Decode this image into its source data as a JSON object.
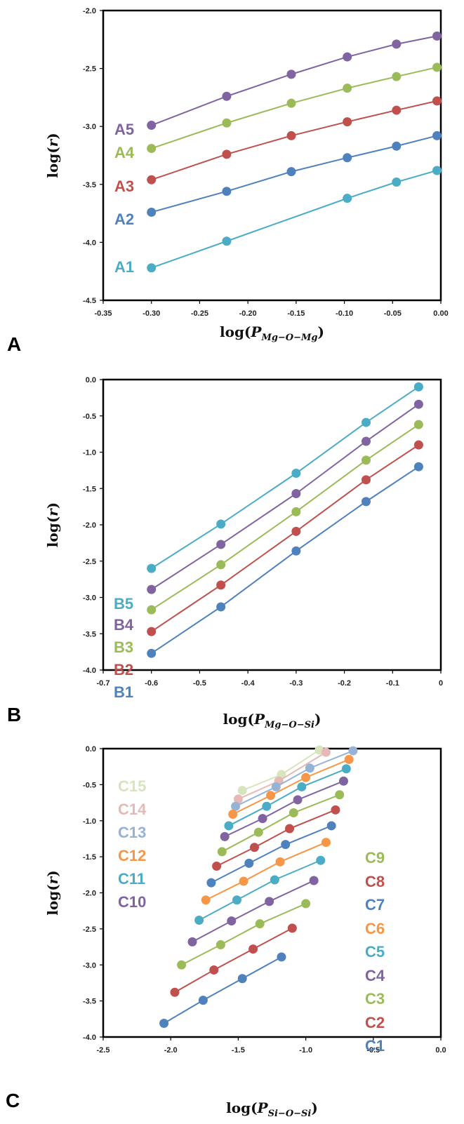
{
  "colors": {
    "A1": "#4BACC6",
    "A2": "#4F81BD",
    "A3": "#C0504D",
    "A4": "#9BBB59",
    "A5": "#8064A2",
    "B1": "#4F81BD",
    "B2": "#C0504D",
    "B3": "#9BBB59",
    "B4": "#8064A2",
    "B5": "#4BACC6",
    "C1": "#4F81BD",
    "C2": "#C0504D",
    "C3": "#9BBB59",
    "C4": "#8064A2",
    "C5": "#4BACC6",
    "C6": "#F79646",
    "C7": "#4F81BD",
    "C8": "#C0504D",
    "C9": "#9BBB59",
    "C10": "#8064A2",
    "C11": "#4BACC6",
    "C12": "#F79646",
    "C13": "#95B3D7",
    "C14": "#E6B9B8",
    "C15": "#D7E4BD"
  },
  "chart_data": [
    {
      "panel": "A",
      "type": "scatter",
      "xlabel": {
        "text": "log(P",
        "sub": "Mg−O−Mg",
        "close": ")"
      },
      "ylabel": {
        "text": "log(r)"
      },
      "xlim": [
        -0.35,
        0.0
      ],
      "ylim": [
        -4.5,
        -2.0
      ],
      "xticks": [
        "-0.35",
        "-0.30",
        "-0.25",
        "-0.20",
        "-0.15",
        "-0.10",
        "-0.05",
        "0.00"
      ],
      "yticks": [
        "-2.0",
        "-2.5",
        "-3.0",
        "-3.5",
        "-4.0",
        "-4.5"
      ],
      "series": [
        {
          "name": "A5",
          "x": [
            -0.3,
            -0.222,
            -0.155,
            -0.097,
            -0.046,
            -0.004
          ],
          "y": [
            -2.99,
            -2.74,
            -2.55,
            -2.4,
            -2.29,
            -2.22
          ]
        },
        {
          "name": "A4",
          "x": [
            -0.3,
            -0.222,
            -0.155,
            -0.097,
            -0.046,
            -0.004
          ],
          "y": [
            -3.19,
            -2.97,
            -2.8,
            -2.67,
            -2.57,
            -2.49
          ]
        },
        {
          "name": "A3",
          "x": [
            -0.3,
            -0.222,
            -0.155,
            -0.097,
            -0.046,
            -0.004
          ],
          "y": [
            -3.46,
            -3.24,
            -3.08,
            -2.96,
            -2.86,
            -2.78
          ]
        },
        {
          "name": "A2",
          "x": [
            -0.3,
            -0.222,
            -0.155,
            -0.097,
            -0.046,
            -0.004
          ],
          "y": [
            -3.74,
            -3.56,
            -3.39,
            -3.27,
            -3.17,
            -3.08
          ]
        },
        {
          "name": "A1",
          "x": [
            -0.3,
            -0.222,
            -0.097,
            -0.046,
            -0.004
          ],
          "y": [
            -4.22,
            -3.99,
            -3.62,
            -3.48,
            -3.38
          ]
        }
      ]
    },
    {
      "panel": "B",
      "type": "scatter",
      "xlabel": {
        "text": "log(P",
        "sub": "Mg−O−Si",
        "close": ")"
      },
      "ylabel": {
        "text": "log(r)"
      },
      "xlim": [
        -0.7,
        0.0
      ],
      "ylim": [
        -4.0,
        0.0
      ],
      "xticks": [
        "-0.7",
        "-0.6",
        "-0.5",
        "-0.4",
        "-0.3",
        "-0.2",
        "-0.1",
        "0"
      ],
      "yticks": [
        "0.0",
        "-0.5",
        "-1.0",
        "-1.5",
        "-2.0",
        "-2.5",
        "-3.0",
        "-3.5",
        "-4.0"
      ],
      "series": [
        {
          "name": "B5",
          "x": [
            -0.6,
            -0.456,
            -0.3,
            -0.155,
            -0.046
          ],
          "y": [
            -2.6,
            -1.99,
            -1.29,
            -0.59,
            -0.1
          ]
        },
        {
          "name": "B4",
          "x": [
            -0.6,
            -0.456,
            -0.3,
            -0.155,
            -0.046
          ],
          "y": [
            -2.89,
            -2.27,
            -1.57,
            -0.85,
            -0.34
          ]
        },
        {
          "name": "B3",
          "x": [
            -0.6,
            -0.456,
            -0.3,
            -0.155,
            -0.046
          ],
          "y": [
            -3.17,
            -2.55,
            -1.82,
            -1.11,
            -0.62
          ]
        },
        {
          "name": "B2",
          "x": [
            -0.6,
            -0.456,
            -0.3,
            -0.155,
            -0.046
          ],
          "y": [
            -3.47,
            -2.83,
            -2.09,
            -1.38,
            -0.9
          ]
        },
        {
          "name": "B1",
          "x": [
            -0.6,
            -0.456,
            -0.3,
            -0.155,
            -0.046
          ],
          "y": [
            -3.77,
            -3.13,
            -2.36,
            -1.68,
            -1.2
          ]
        }
      ]
    },
    {
      "panel": "C",
      "type": "scatter",
      "xlabel": {
        "text": "log(P",
        "sub": "Si−O−Si",
        "close": ")"
      },
      "ylabel": {
        "text": "log(r)"
      },
      "xlim": [
        -2.5,
        0.0
      ],
      "ylim": [
        -4.0,
        0.0
      ],
      "xticks": [
        "-2.5",
        "-2.0",
        "-1.5",
        "-1.0",
        "-0.5",
        "0.0"
      ],
      "yticks": [
        "0.0",
        "-0.5",
        "-1.0",
        "-1.5",
        "-2.0",
        "-2.5",
        "-3.0",
        "-3.5",
        "-4.0"
      ],
      "series": [
        {
          "name": "C15",
          "x": [
            -1.47,
            -1.18,
            -0.9
          ],
          "y": [
            -0.58,
            -0.36,
            -0.02
          ]
        },
        {
          "name": "C14",
          "x": [
            -1.5,
            -1.2,
            -0.85
          ],
          "y": [
            -0.7,
            -0.45,
            -0.05
          ]
        },
        {
          "name": "C13",
          "x": [
            -1.52,
            -1.22,
            -0.97,
            -0.65
          ],
          "y": [
            -0.8,
            -0.53,
            -0.27,
            -0.03
          ]
        },
        {
          "name": "C12",
          "x": [
            -1.54,
            -1.26,
            -1.0,
            -0.68
          ],
          "y": [
            -0.91,
            -0.65,
            -0.4,
            -0.15
          ]
        },
        {
          "name": "C11",
          "x": [
            -1.57,
            -1.29,
            -1.03,
            -0.7
          ],
          "y": [
            -1.07,
            -0.8,
            -0.53,
            -0.28
          ]
        },
        {
          "name": "C10",
          "x": [
            -1.6,
            -1.32,
            -1.06,
            -0.72
          ],
          "y": [
            -1.22,
            -0.97,
            -0.71,
            -0.45
          ]
        },
        {
          "name": "C9",
          "x": [
            -1.62,
            -1.35,
            -1.09,
            -0.75
          ],
          "y": [
            -1.43,
            -1.16,
            -0.89,
            -0.64
          ]
        },
        {
          "name": "C8",
          "x": [
            -1.66,
            -1.38,
            -1.12,
            -0.78
          ],
          "y": [
            -1.63,
            -1.37,
            -1.11,
            -0.85
          ]
        },
        {
          "name": "C7",
          "x": [
            -1.7,
            -1.42,
            -1.15,
            -0.81
          ],
          "y": [
            -1.86,
            -1.59,
            -1.33,
            -1.07
          ]
        },
        {
          "name": "C6",
          "x": [
            -1.74,
            -1.46,
            -1.19,
            -0.85
          ],
          "y": [
            -2.1,
            -1.84,
            -1.57,
            -1.3
          ]
        },
        {
          "name": "C5",
          "x": [
            -1.79,
            -1.51,
            -1.23,
            -0.89
          ],
          "y": [
            -2.38,
            -2.1,
            -1.82,
            -1.55
          ]
        },
        {
          "name": "C4",
          "x": [
            -1.84,
            -1.55,
            -1.27,
            -0.94
          ],
          "y": [
            -2.68,
            -2.39,
            -2.12,
            -1.83
          ]
        },
        {
          "name": "C3",
          "x": [
            -1.92,
            -1.63,
            -1.34,
            -1.0
          ],
          "y": [
            -3.0,
            -2.72,
            -2.43,
            -2.15
          ]
        },
        {
          "name": "C2",
          "x": [
            -1.97,
            -1.68,
            -1.39,
            -1.1
          ],
          "y": [
            -3.38,
            -3.07,
            -2.78,
            -2.49
          ]
        },
        {
          "name": "C1",
          "x": [
            -2.05,
            -1.76,
            -1.47,
            -1.18
          ],
          "y": [
            -3.81,
            -3.49,
            -3.19,
            -2.89
          ]
        }
      ]
    }
  ]
}
